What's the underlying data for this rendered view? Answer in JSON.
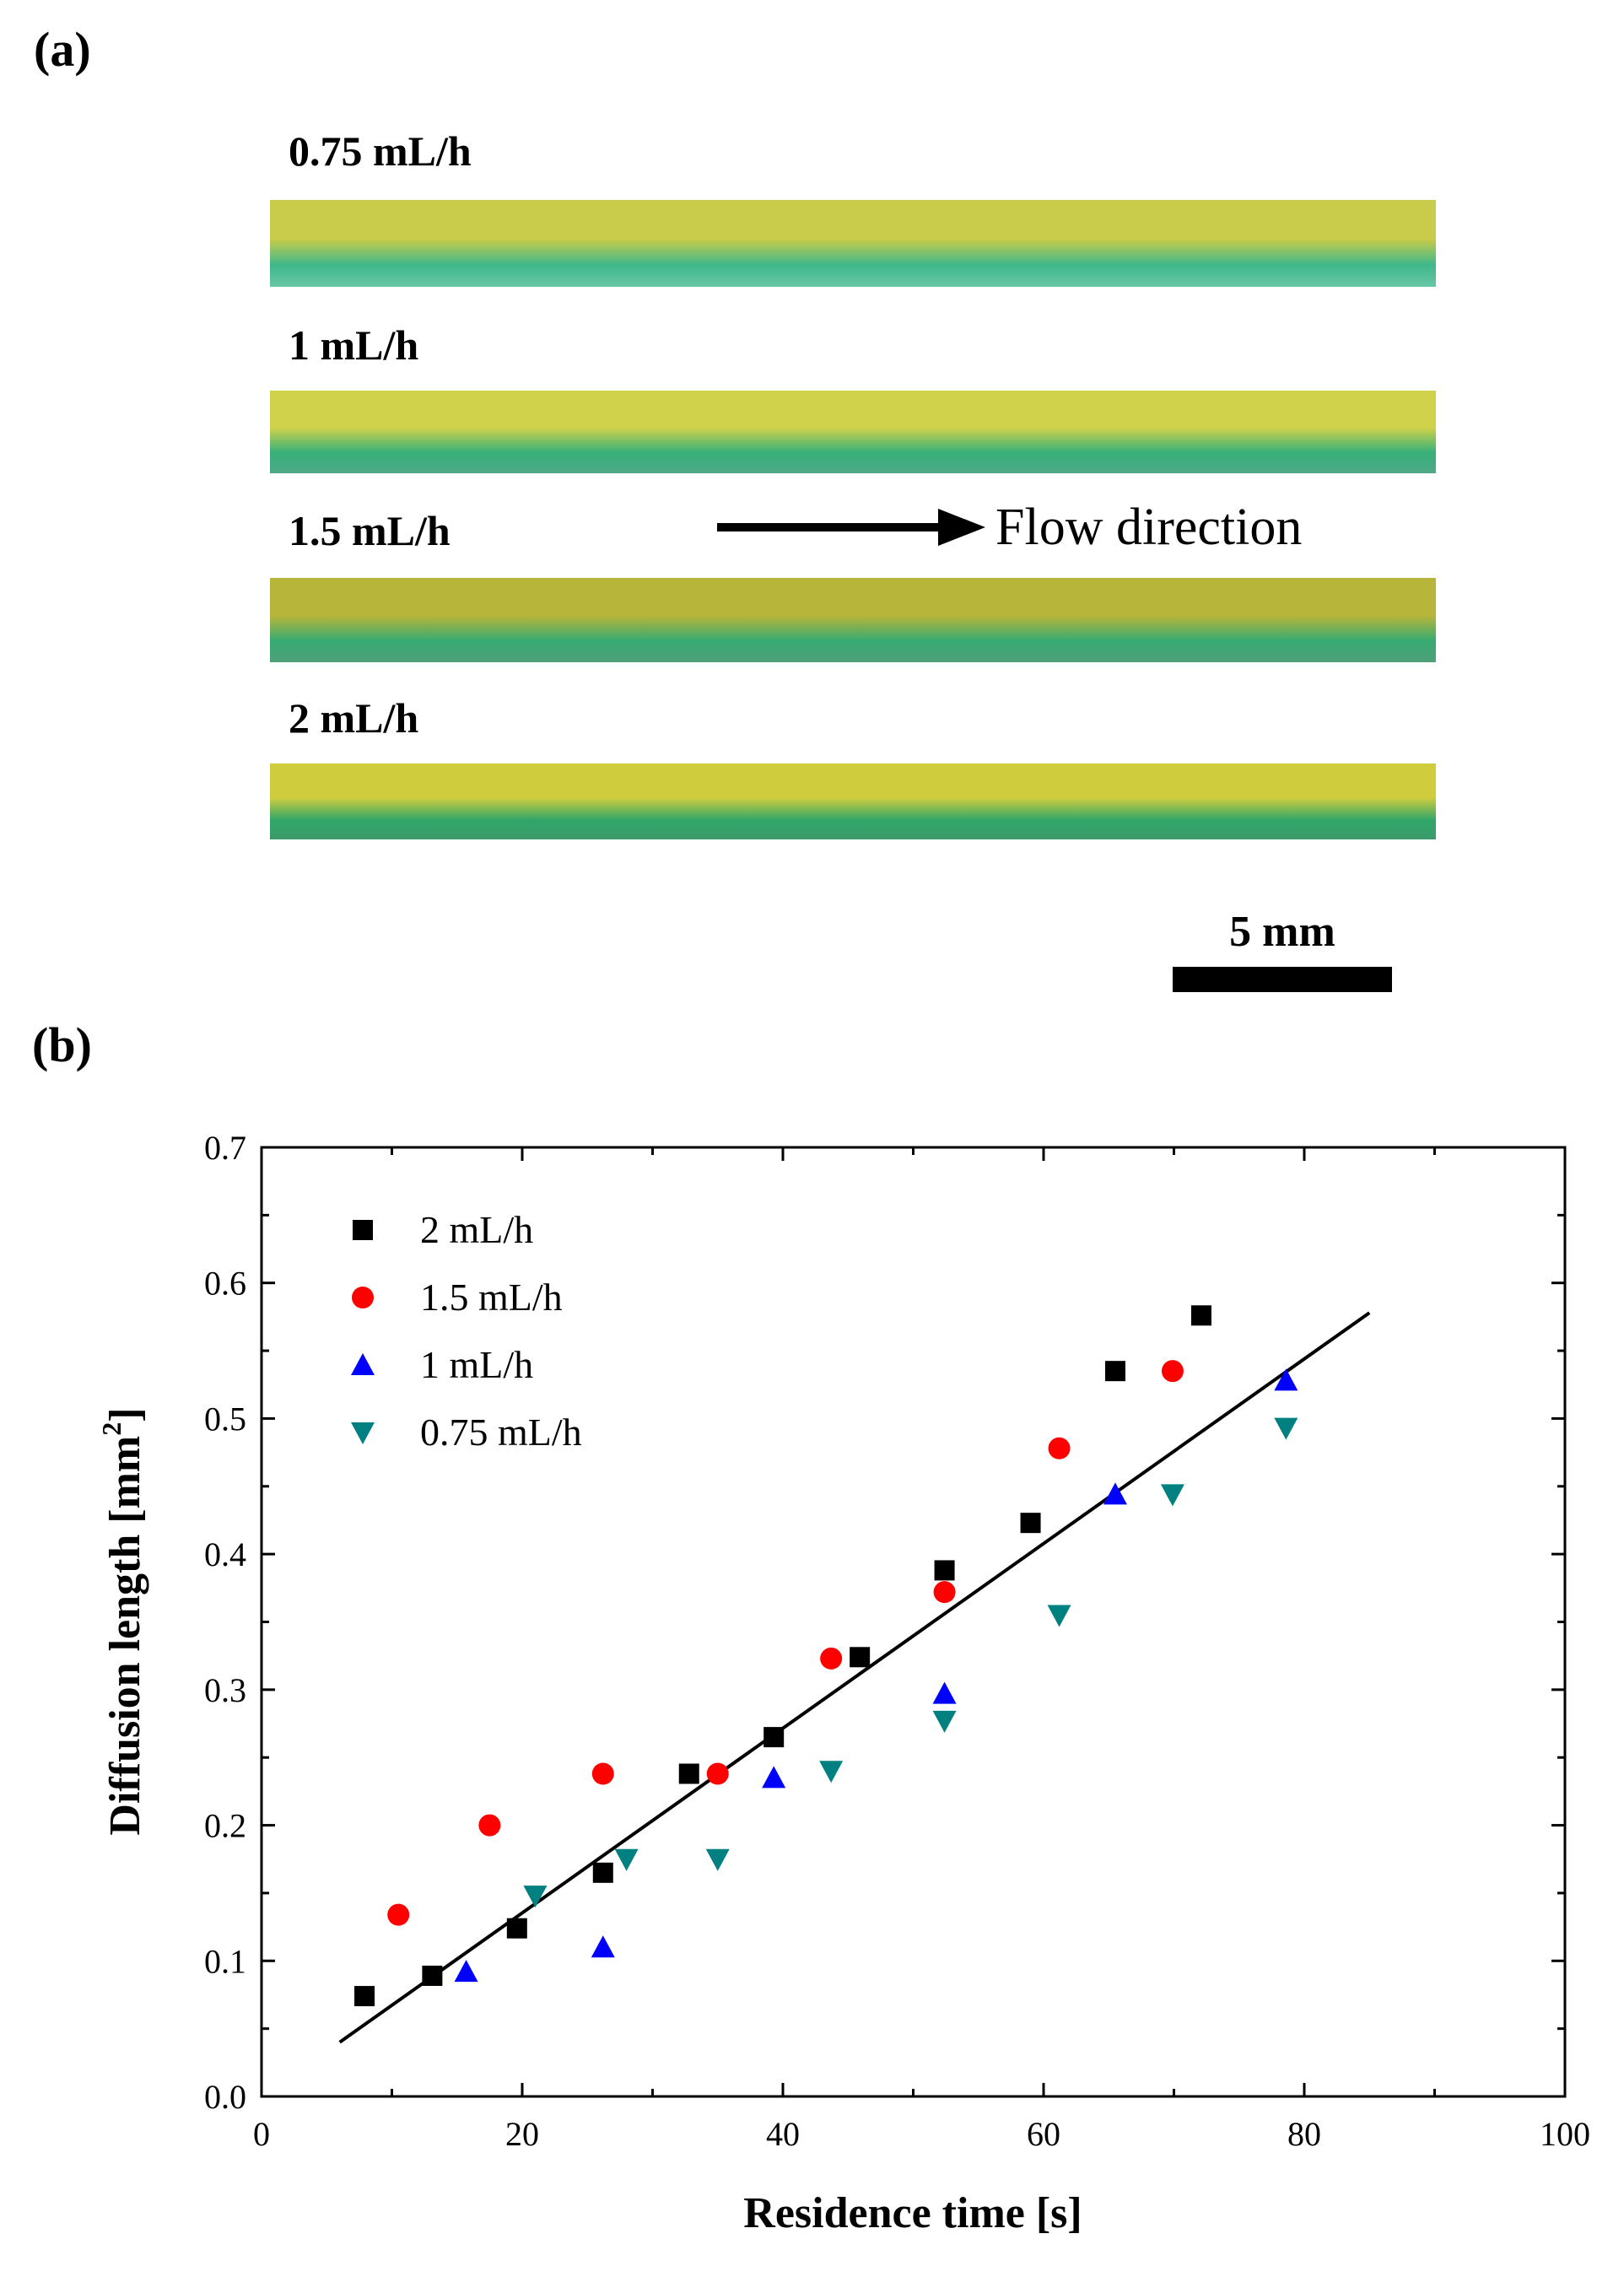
{
  "panel_a": {
    "label": "(a)",
    "strips": [
      {
        "label": "0.75 mL/h",
        "colors": [
          "#c8cc4a",
          "#3eb88a",
          "#69c7a8"
        ]
      },
      {
        "label": "1 mL/h",
        "colors": [
          "#cfd24a",
          "#36b07a",
          "#4fa885"
        ]
      },
      {
        "label": "1.5 mL/h",
        "colors": [
          "#b7b53a",
          "#36aa72",
          "#4fa07a"
        ]
      },
      {
        "label": "2 mL/h",
        "colors": [
          "#cfcd3e",
          "#2fa66a",
          "#3c9a6a"
        ]
      }
    ],
    "flow_direction": "Flow direction",
    "scale_bar_label": "5 mm"
  },
  "panel_b": {
    "label": "(b)"
  },
  "chart_data": {
    "type": "scatter",
    "xlabel": "Residence time [s]",
    "ylabel": "Diffusion length [mm",
    "ylabel_superscript": "2",
    "ylabel_close": "]",
    "xlim": [
      0,
      100
    ],
    "ylim": [
      0,
      0.7
    ],
    "xticks": [
      "0",
      "20",
      "40",
      "60",
      "80",
      "100"
    ],
    "yticks": [
      "0.0",
      "0.1",
      "0.2",
      "0.3",
      "0.4",
      "0.5",
      "0.6",
      "0.7"
    ],
    "legend_position": "top-left",
    "series": [
      {
        "name": "2 mL/h",
        "marker": "square",
        "color": "#000000",
        "x": [
          7.9,
          13.1,
          19.6,
          26.2,
          32.8,
          39.3,
          45.9,
          52.4,
          59.0,
          65.5,
          72.1
        ],
        "y": [
          0.074,
          0.089,
          0.124,
          0.165,
          0.238,
          0.265,
          0.324,
          0.388,
          0.423,
          0.535,
          0.576
        ]
      },
      {
        "name": "1.5 mL/h",
        "marker": "circle",
        "color": "#ff0000",
        "x": [
          10.5,
          17.5,
          26.2,
          35.0,
          43.7,
          52.4,
          61.2,
          69.9
        ],
        "y": [
          0.134,
          0.2,
          0.238,
          0.238,
          0.323,
          0.372,
          0.478,
          0.535
        ]
      },
      {
        "name": "1 mL/h",
        "marker": "triangle-up",
        "color": "#0000ff",
        "x": [
          15.7,
          26.2,
          39.3,
          52.4,
          65.5,
          78.6
        ],
        "y": [
          0.092,
          0.11,
          0.235,
          0.297,
          0.444,
          0.528
        ]
      },
      {
        "name": "0.75 mL/h",
        "marker": "triangle-down",
        "color": "#008080",
        "x": [
          21.0,
          28.0,
          35.0,
          43.7,
          52.4,
          61.2,
          69.9,
          78.6
        ],
        "y": [
          0.148,
          0.175,
          0.175,
          0.24,
          0.277,
          0.355,
          0.444,
          0.493
        ]
      }
    ],
    "fit_line": {
      "x": [
        6,
        85
      ],
      "y": [
        0.04,
        0.578
      ],
      "color": "#000000"
    }
  }
}
